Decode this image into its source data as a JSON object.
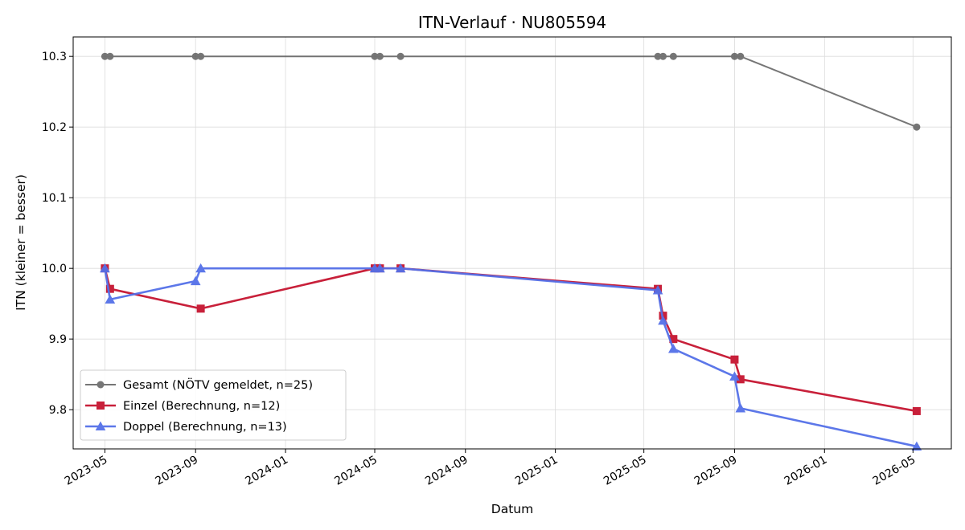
{
  "chart_data": {
    "type": "line",
    "title": "ITN-Verlauf · NU805594",
    "xlabel": "Datum",
    "ylabel": "ITN  (kleiner = besser)",
    "x_type": "date",
    "xlim": [
      "2023-03-19",
      "2026-06-22"
    ],
    "ylim": [
      9.7445,
      10.3275
    ],
    "x_ticks": [
      "2023-05-01",
      "2023-09-01",
      "2024-01-01",
      "2024-05-01",
      "2024-09-01",
      "2025-01-01",
      "2025-05-01",
      "2025-09-01",
      "2026-01-01",
      "2026-05-01"
    ],
    "x_tick_labels": [
      "2023-05",
      "2023-09",
      "2024-01",
      "2024-05",
      "2024-09",
      "2025-01",
      "2025-05",
      "2025-09",
      "2026-01",
      "2026-05"
    ],
    "y_ticks": [
      9.8,
      9.9,
      10.0,
      10.1,
      10.2,
      10.3
    ],
    "y_tick_labels": [
      "9.8",
      "9.9",
      "10.0",
      "10.1",
      "10.2",
      "10.3"
    ],
    "grid": true,
    "legend_position": "lower-left",
    "series": [
      {
        "name": "Gesamt (NÖTV gemeldet, n=25)",
        "color": "#555555",
        "marker": "circle",
        "points": [
          {
            "x": "2023-05-01",
            "y": 10.3
          },
          {
            "x": "2023-05-08",
            "y": 10.3
          },
          {
            "x": "2023-09-01",
            "y": 10.3
          },
          {
            "x": "2023-09-08",
            "y": 10.3
          },
          {
            "x": "2024-05-01",
            "y": 10.3
          },
          {
            "x": "2024-05-08",
            "y": 10.3
          },
          {
            "x": "2024-06-05",
            "y": 10.3
          },
          {
            "x": "2025-05-20",
            "y": 10.3
          },
          {
            "x": "2025-05-27",
            "y": 10.3
          },
          {
            "x": "2025-06-10",
            "y": 10.3
          },
          {
            "x": "2025-09-01",
            "y": 10.3
          },
          {
            "x": "2025-09-09",
            "y": 10.3
          },
          {
            "x": "2026-05-06",
            "y": 10.2
          }
        ]
      },
      {
        "name": "Einzel (Berechnung, n=12)",
        "color": "#c8203a",
        "marker": "square",
        "points": [
          {
            "x": "2023-05-01",
            "y": 10.0
          },
          {
            "x": "2023-05-08",
            "y": 9.971
          },
          {
            "x": "2023-09-08",
            "y": 9.943
          },
          {
            "x": "2024-05-01",
            "y": 10.0
          },
          {
            "x": "2024-05-08",
            "y": 10.0
          },
          {
            "x": "2024-06-05",
            "y": 10.0
          },
          {
            "x": "2025-05-20",
            "y": 9.971
          },
          {
            "x": "2025-05-27",
            "y": 9.933
          },
          {
            "x": "2025-06-10",
            "y": 9.9
          },
          {
            "x": "2025-09-01",
            "y": 9.871
          },
          {
            "x": "2025-09-09",
            "y": 9.843
          },
          {
            "x": "2026-05-06",
            "y": 9.798
          }
        ]
      },
      {
        "name": "Doppel (Berechnung, n=13)",
        "color": "#5470e8",
        "marker": "triangle",
        "points": [
          {
            "x": "2023-05-01",
            "y": 10.0
          },
          {
            "x": "2023-05-08",
            "y": 9.956
          },
          {
            "x": "2023-09-01",
            "y": 9.982
          },
          {
            "x": "2023-09-08",
            "y": 10.0
          },
          {
            "x": "2024-05-01",
            "y": 10.0
          },
          {
            "x": "2024-05-08",
            "y": 10.0
          },
          {
            "x": "2024-06-05",
            "y": 10.0
          },
          {
            "x": "2025-05-20",
            "y": 9.969
          },
          {
            "x": "2025-05-27",
            "y": 9.926
          },
          {
            "x": "2025-06-10",
            "y": 9.886
          },
          {
            "x": "2025-09-01",
            "y": 9.847
          },
          {
            "x": "2025-09-09",
            "y": 9.802
          },
          {
            "x": "2026-05-06",
            "y": 9.748
          }
        ]
      }
    ]
  }
}
